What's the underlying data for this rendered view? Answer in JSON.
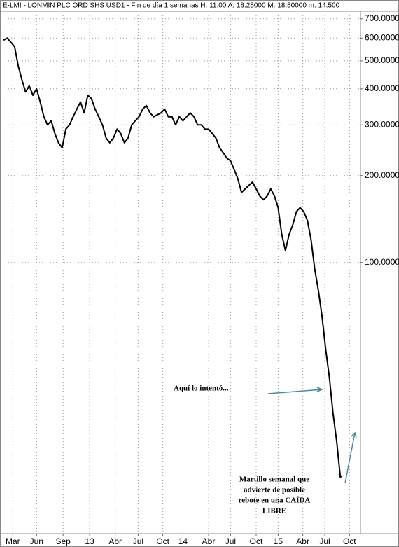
{
  "chart_data": {
    "type": "line",
    "title": "E-LMI - LONMIN PLC ORD SHS USD1 - Fin de día 1 semanas  H: 11:00  A: 18.25000  M: 18.50000  m: 14.500",
    "log_scale": true,
    "grid": true,
    "x": [
      0,
      2,
      4,
      6,
      8,
      10,
      12,
      14,
      16,
      18,
      20,
      22,
      24,
      26,
      28,
      30,
      32,
      34,
      36,
      38,
      40,
      42,
      44,
      46,
      48,
      50,
      52,
      54,
      56,
      58,
      60,
      62,
      64,
      66,
      68,
      70,
      72,
      74,
      76,
      78,
      80,
      82,
      84,
      86,
      88,
      90,
      92,
      94,
      96,
      98,
      100,
      102,
      104,
      106,
      108,
      110,
      112,
      114,
      116,
      118,
      120,
      122,
      124,
      126,
      128,
      130,
      132,
      134,
      136,
      138,
      140,
      142,
      144,
      146,
      148,
      150,
      152,
      154,
      156,
      158,
      160,
      162,
      164,
      166,
      168,
      170,
      172,
      174,
      176,
      178,
      180,
      182,
      184,
      185
    ],
    "series": [
      {
        "name": "E-LMI",
        "color": "#000000",
        "values": [
          590,
          600,
          580,
          560,
          480,
          430,
          390,
          410,
          380,
          400,
          360,
          320,
          300,
          310,
          280,
          260,
          250,
          290,
          300,
          320,
          340,
          360,
          330,
          380,
          370,
          340,
          320,
          300,
          270,
          260,
          270,
          290,
          280,
          260,
          270,
          300,
          310,
          320,
          340,
          350,
          330,
          320,
          325,
          330,
          340,
          320,
          320,
          300,
          320,
          310,
          320,
          330,
          320,
          300,
          300,
          290,
          290,
          280,
          270,
          250,
          240,
          230,
          225,
          210,
          195,
          175,
          180,
          185,
          190,
          180,
          170,
          165,
          170,
          180,
          170,
          155,
          125,
          110,
          125,
          135,
          150,
          155,
          150,
          140,
          120,
          95,
          80,
          65,
          50,
          40,
          30,
          24,
          18,
          18.25
        ]
      }
    ],
    "xlim": [
      -2,
      195
    ],
    "xticks": [
      {
        "value": 5,
        "label": "Mar"
      },
      {
        "value": 18,
        "label": "Jun"
      },
      {
        "value": 32.5,
        "label": "Sep"
      },
      {
        "value": 47,
        "label": "13"
      },
      {
        "value": 61,
        "label": "Abr"
      },
      {
        "value": 73.5,
        "label": "Jul"
      },
      {
        "value": 87,
        "label": "Oct"
      },
      {
        "value": 98,
        "label": "14"
      },
      {
        "value": 112,
        "label": "Abr"
      },
      {
        "value": 124,
        "label": "Jul"
      },
      {
        "value": 138,
        "label": "Oct"
      },
      {
        "value": 150,
        "label": "15"
      },
      {
        "value": 163.5,
        "label": "Abr"
      },
      {
        "value": 175.5,
        "label": "Jul"
      },
      {
        "value": 189,
        "label": "Oct"
      }
    ],
    "ylim": [
      11.6,
      735
    ],
    "yticks": [
      {
        "value": 700,
        "label": "700.0000"
      },
      {
        "value": 600,
        "label": "600.0000"
      },
      {
        "value": 500,
        "label": "500.0000"
      },
      {
        "value": 400,
        "label": "400.0000"
      },
      {
        "value": 300,
        "label": "300.0000"
      },
      {
        "value": 200,
        "label": "200.0000"
      },
      {
        "value": 100,
        "label": "100.0000"
      }
    ],
    "annotations": [
      "Aquí lo intentó...",
      "Martillo semanal que",
      "advierte de posible",
      "rebote en una CAÍDA",
      "LIBRE"
    ]
  }
}
